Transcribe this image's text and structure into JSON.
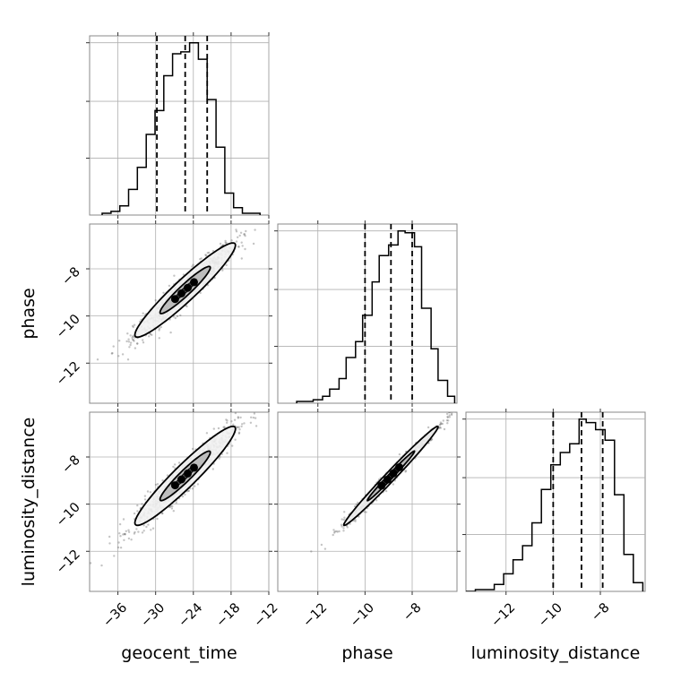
{
  "chart_data": {
    "type": "corner",
    "parameters": [
      "geocent_time",
      "phase",
      "luminosity_distance"
    ],
    "ranges": {
      "geocent_time": [
        -40.5,
        -12
      ],
      "phase": [
        -13.7,
        -6.1
      ],
      "luminosity_distance": [
        -13.7,
        -6.1
      ]
    },
    "tick_labels": {
      "geocent_time": [
        "−36",
        "−30",
        "−24",
        "−18",
        "−12"
      ],
      "phase": [
        "−12",
        "−10",
        "−8"
      ],
      "luminosity_distance": [
        "−12",
        "−10",
        "−8"
      ]
    },
    "tick_values": {
      "geocent_time": [
        -36,
        -30,
        -24,
        -18,
        -12
      ],
      "phase": [
        -12,
        -10,
        -8
      ],
      "luminosity_distance": [
        -12,
        -10,
        -8
      ]
    },
    "quantiles": {
      "geocent_time": [
        -29.8,
        -25.3,
        -21.8
      ],
      "phase": [
        -10.0,
        -8.9,
        -8.0
      ],
      "luminosity_distance": [
        -10.0,
        -8.8,
        -7.9
      ]
    },
    "histograms": {
      "geocent_time": {
        "bin_edges": [
          -38.5,
          -37.1,
          -35.7,
          -34.3,
          -32.9,
          -31.5,
          -30.1,
          -28.7,
          -27.3,
          -26.0,
          -24.6,
          -23.2,
          -21.8,
          -20.4,
          -19.0,
          -17.6,
          -16.2,
          -14.8,
          -13.4
        ],
        "counts": [
          1,
          2,
          5,
          14,
          26,
          44,
          57,
          76,
          88,
          89,
          94,
          85,
          63,
          37,
          12,
          4,
          1,
          1
        ]
      },
      "phase": {
        "bin_edges": [
          -12.9,
          -12.5,
          -12.2,
          -11.8,
          -11.5,
          -11.1,
          -10.8,
          -10.4,
          -10.1,
          -9.7,
          -9.4,
          -9.0,
          -8.6,
          -8.3,
          -7.9,
          -7.6,
          -7.2,
          -6.9,
          -6.5,
          -6.2
        ],
        "counts": [
          1,
          1,
          2,
          4,
          8,
          14,
          26,
          35,
          50,
          69,
          84,
          90,
          98,
          97,
          89,
          54,
          31,
          13,
          4
        ]
      },
      "luminosity_distance": {
        "bin_edges": [
          -13.7,
          -13.3,
          -12.9,
          -12.5,
          -12.1,
          -11.7,
          -11.3,
          -10.9,
          -10.5,
          -10.1,
          -9.7,
          -9.3,
          -8.9,
          -8.6,
          -8.2,
          -7.8,
          -7.4,
          -7.0,
          -6.6,
          -6.2
        ],
        "counts": [
          0,
          1,
          1,
          4,
          10,
          18,
          26,
          39,
          58,
          72,
          79,
          84,
          98,
          96,
          92,
          86,
          55,
          21,
          5
        ]
      }
    },
    "correlations": {
      "geocent_time-phase": 0.95,
      "geocent_time-luminosity_distance": 0.95,
      "phase-luminosity_distance": 0.99
    },
    "grid": true
  }
}
